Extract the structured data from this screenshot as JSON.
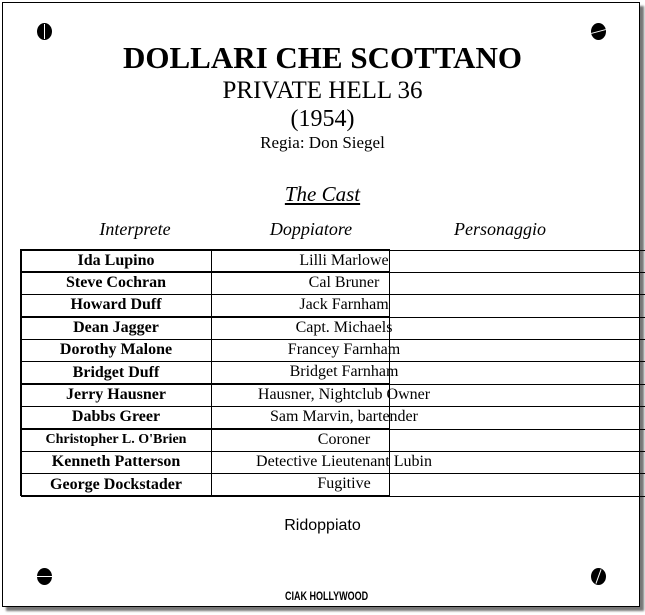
{
  "title": "DOLLARI CHE SCOTTANO",
  "original_title": "PRIVATE HELL 36",
  "year": "(1954)",
  "director": "Regia: Don Siegel",
  "cast_heading": "The Cast",
  "columns": {
    "actor": "Interprete",
    "dubber": "Doppiatore",
    "character": "Personaggio"
  },
  "rows": [
    {
      "actor": "Ida Lupino",
      "dubber": "",
      "character": "Lilli Marlowe"
    },
    {
      "actor": "Steve Cochran",
      "dubber": "",
      "character": "Cal Bruner"
    },
    {
      "actor": "Howard Duff",
      "dubber": "",
      "character": "Jack Farnham"
    },
    {
      "actor": "Dean Jagger",
      "dubber": "",
      "character": "Capt. Michaels"
    },
    {
      "actor": "Dorothy Malone",
      "dubber": "",
      "character": "Francey Farnham"
    },
    {
      "actor": "Bridget Duff",
      "dubber": "",
      "character": "Bridget Farnham"
    },
    {
      "actor": "Jerry Hausner",
      "dubber": "",
      "character": "Hausner, Nightclub Owner"
    },
    {
      "actor": "Dabbs Greer",
      "dubber": "",
      "character": "Sam Marvin, bartender"
    },
    {
      "actor": "Christopher L. O'Brien",
      "dubber": "",
      "character": "Coroner"
    },
    {
      "actor": "Kenneth Patterson",
      "dubber": "",
      "character": "Detective Lieutenant Lubin"
    },
    {
      "actor": "George Dockstader",
      "dubber": "",
      "character": "Fugitive"
    }
  ],
  "note": "Ridoppiato",
  "logo": "CIAK HOLLYWOOD"
}
